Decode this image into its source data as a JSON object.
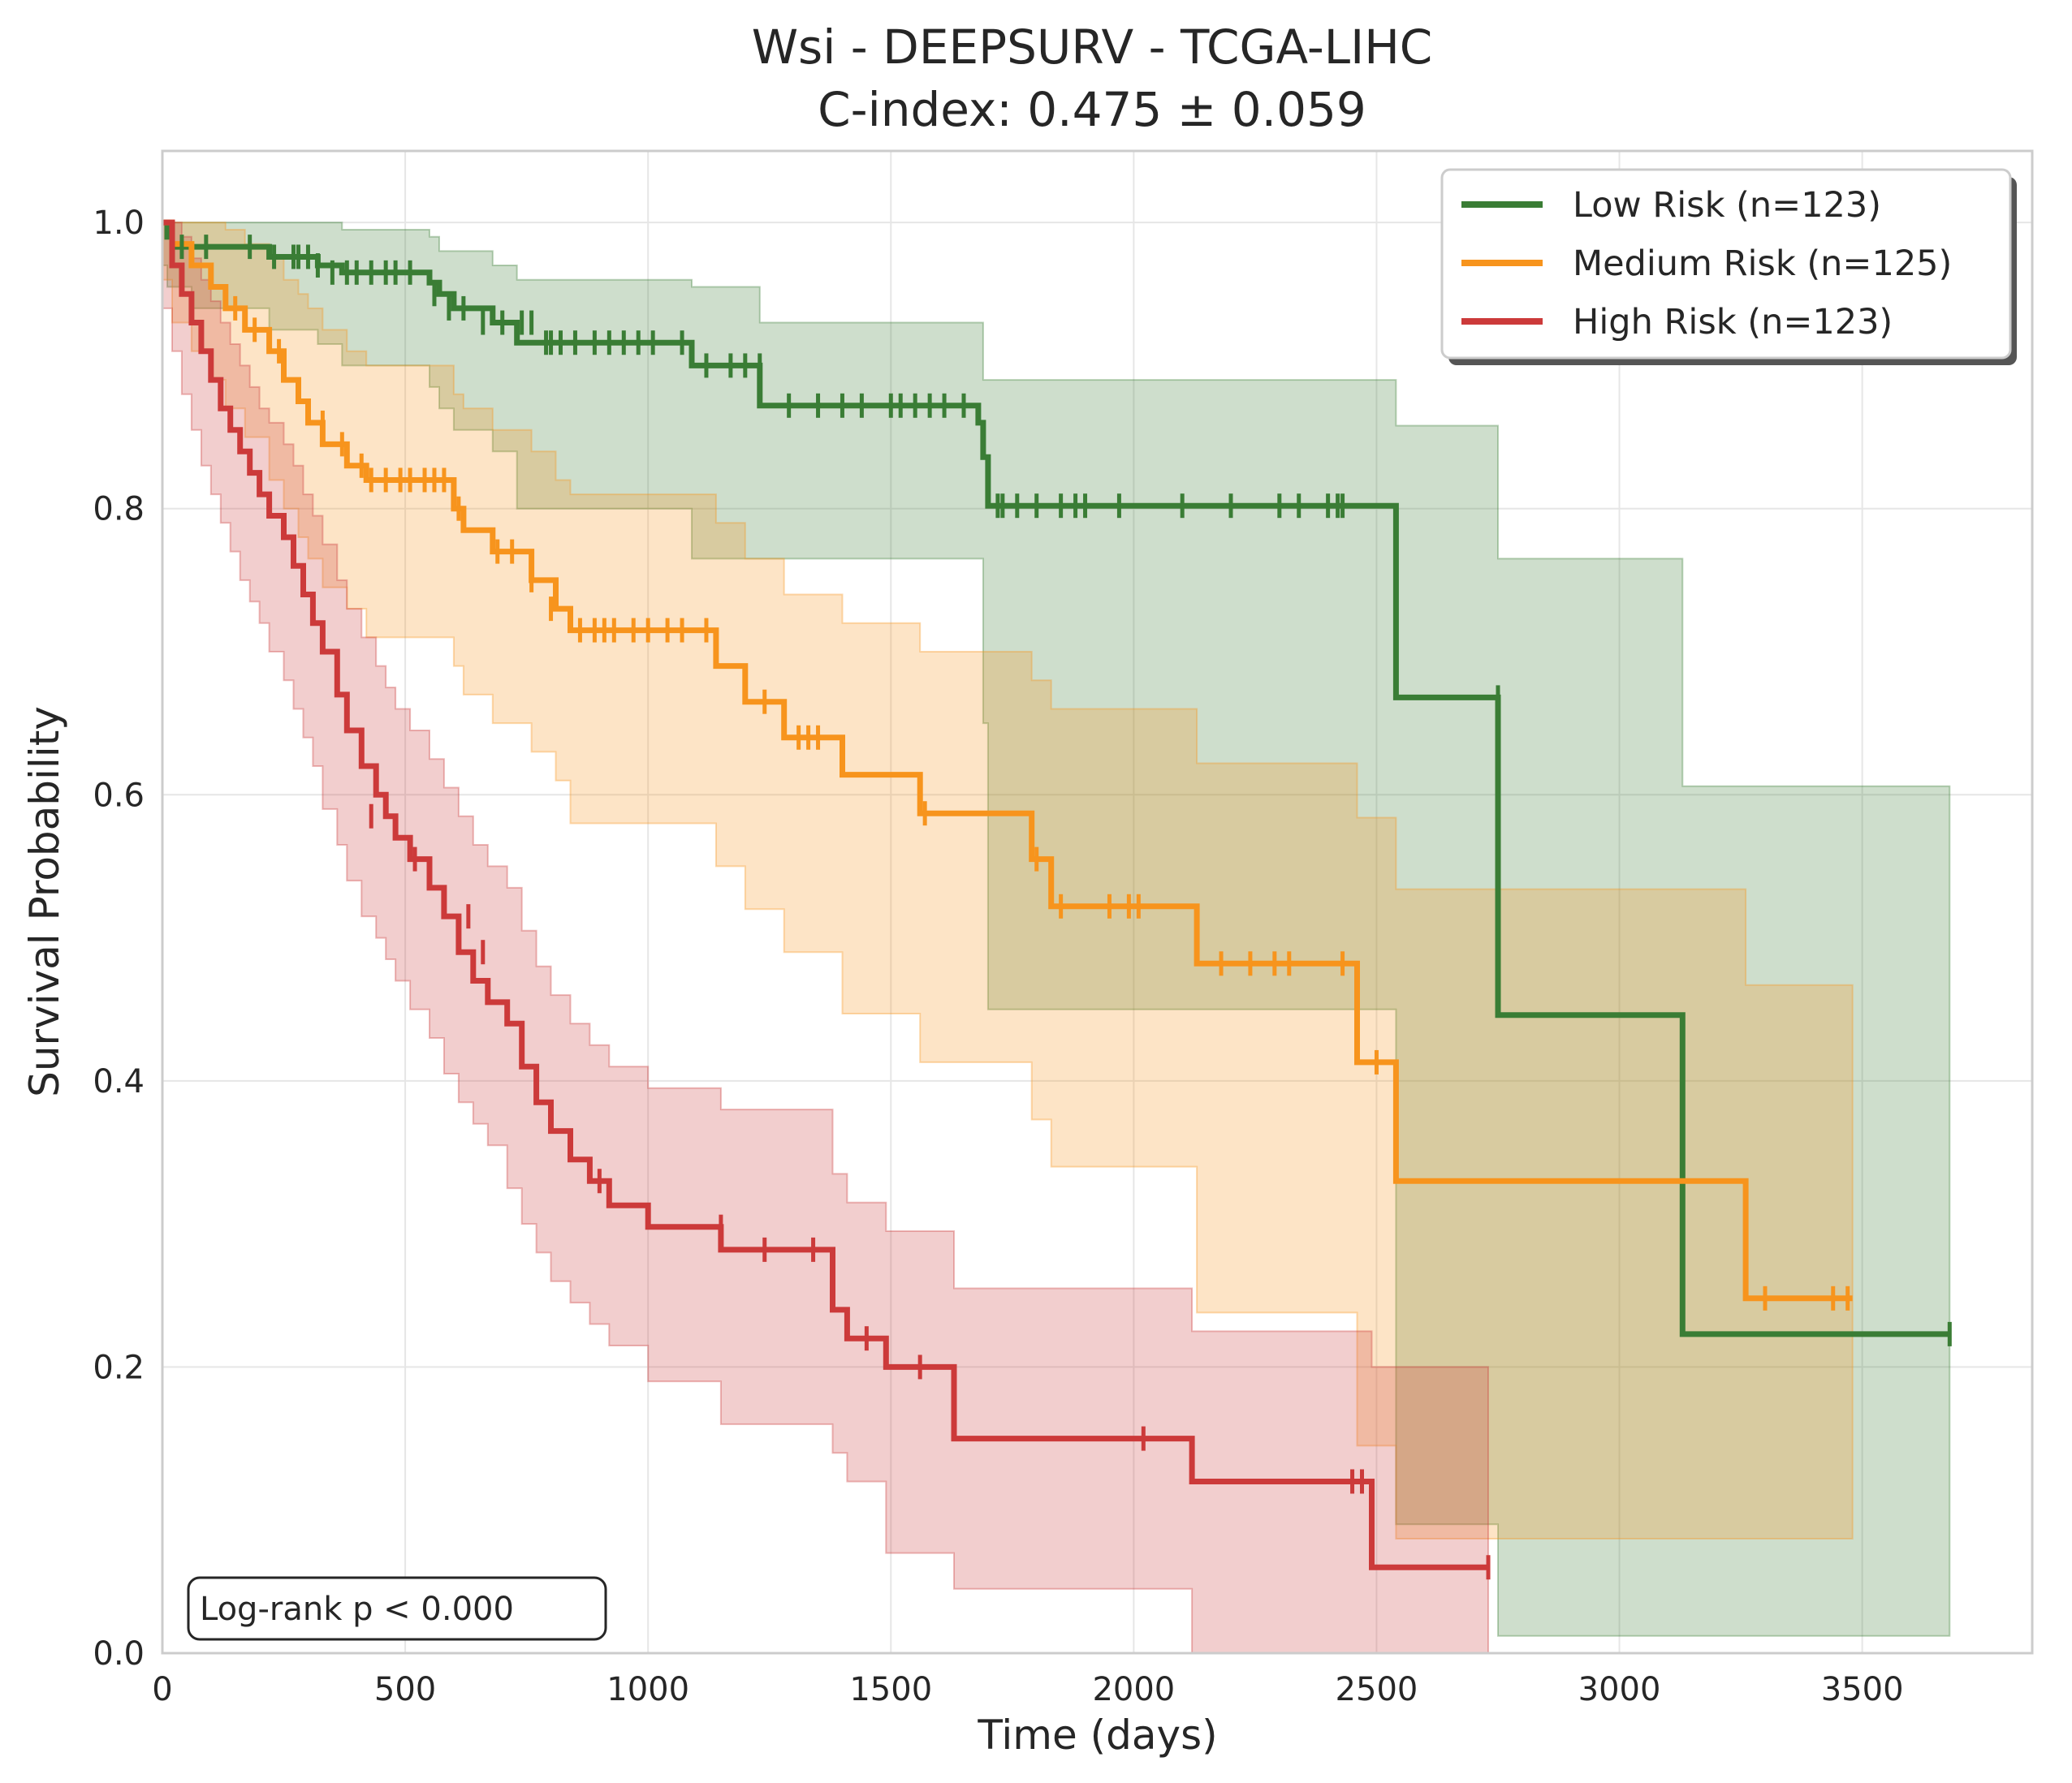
{
  "chart_data": {
    "type": "line",
    "subtype": "kaplan-meier",
    "title": "Wsi - DEEPSURV - TCGA-LIHC",
    "subtitle": "C-index: 0.475 ± 0.059",
    "xlabel": "Time (days)",
    "ylabel": "Survival Probability",
    "xlim": [
      0,
      3850
    ],
    "ylim": [
      0,
      1.05
    ],
    "xticks": [
      0,
      500,
      1000,
      1500,
      2000,
      2500,
      3000,
      3500
    ],
    "yticks": [
      0.0,
      0.2,
      0.4,
      0.6,
      0.8,
      1.0
    ],
    "xtick_labels": [
      "0",
      "500",
      "1000",
      "1500",
      "2000",
      "2500",
      "3000",
      "3500"
    ],
    "ytick_labels": [
      "0.0",
      "0.2",
      "0.4",
      "0.6",
      "0.8",
      "1.0"
    ],
    "grid": true,
    "legend_position": "top-right",
    "annotation": "Log-rank p < 0.000",
    "series": [
      {
        "name": "Low Risk (n=123)",
        "color": "#3a7d35",
        "x": [
          0,
          10,
          20,
          60,
          220,
          320,
          370,
          550,
          570,
          600,
          680,
          730,
          1090,
          1230,
          1680,
          1690,
          1700,
          2540,
          2750,
          3130,
          3680
        ],
        "y": [
          1.0,
          0.99,
          0.983,
          0.983,
          0.976,
          0.97,
          0.965,
          0.958,
          0.95,
          0.94,
          0.93,
          0.916,
          0.9,
          0.872,
          0.86,
          0.836,
          0.802,
          0.668,
          0.446,
          0.223,
          0.223
        ],
        "ci_upper": [
          1.0,
          1.0,
          1.0,
          1.0,
          1.0,
          1.0,
          0.995,
          0.99,
          0.98,
          0.98,
          0.97,
          0.96,
          0.955,
          0.93,
          0.93,
          0.89,
          0.89,
          0.858,
          0.765,
          0.606,
          0.606
        ],
        "ci_lower": [
          1.0,
          0.97,
          0.955,
          0.955,
          0.94,
          0.925,
          0.915,
          0.9,
          0.885,
          0.87,
          0.855,
          0.84,
          0.8,
          0.765,
          0.765,
          0.765,
          0.65,
          0.45,
          0.09,
          0.012,
          0.012
        ],
        "censor_x": [
          40,
          90,
          180,
          230,
          270,
          280,
          300,
          320,
          350,
          380,
          400,
          430,
          460,
          480,
          510,
          560,
          590,
          620,
          660,
          700,
          740,
          760,
          790,
          800,
          820,
          850,
          890,
          920,
          950,
          980,
          1010,
          1070,
          1120,
          1170,
          1200,
          1230,
          1290,
          1350,
          1400,
          1440,
          1500,
          1520,
          1550,
          1580,
          1610,
          1650,
          1720,
          1730,
          1760,
          1800,
          1850,
          1880,
          1900,
          1970,
          2100,
          2200,
          2300,
          2340,
          2400,
          2420,
          2430,
          2750,
          3680
        ],
        "censor_y": [
          0.983,
          0.983,
          0.983,
          0.976,
          0.976,
          0.976,
          0.976,
          0.97,
          0.965,
          0.965,
          0.965,
          0.965,
          0.965,
          0.965,
          0.965,
          0.95,
          0.94,
          0.94,
          0.93,
          0.93,
          0.93,
          0.93,
          0.916,
          0.916,
          0.916,
          0.916,
          0.916,
          0.916,
          0.916,
          0.916,
          0.916,
          0.916,
          0.9,
          0.9,
          0.9,
          0.9,
          0.872,
          0.872,
          0.872,
          0.872,
          0.872,
          0.872,
          0.872,
          0.872,
          0.872,
          0.872,
          0.802,
          0.802,
          0.802,
          0.802,
          0.802,
          0.802,
          0.802,
          0.802,
          0.802,
          0.802,
          0.802,
          0.802,
          0.802,
          0.802,
          0.802,
          0.668,
          0.223
        ]
      },
      {
        "name": "Medium Risk (n=125)",
        "color": "#f7941d",
        "x": [
          0,
          20,
          60,
          100,
          130,
          170,
          220,
          250,
          280,
          300,
          330,
          380,
          420,
          600,
          620,
          680,
          760,
          810,
          840,
          1140,
          1200,
          1280,
          1400,
          1560,
          1790,
          1830,
          2130,
          2460,
          2540,
          3260,
          3480
        ],
        "y": [
          1.0,
          0.985,
          0.97,
          0.955,
          0.94,
          0.925,
          0.91,
          0.89,
          0.875,
          0.86,
          0.845,
          0.83,
          0.82,
          0.8,
          0.785,
          0.77,
          0.75,
          0.73,
          0.715,
          0.69,
          0.665,
          0.64,
          0.614,
          0.587,
          0.555,
          0.522,
          0.482,
          0.413,
          0.33,
          0.248,
          0.248
        ],
        "ci_upper": [
          1.0,
          1.0,
          1.0,
          1.0,
          0.995,
          0.985,
          0.975,
          0.96,
          0.95,
          0.94,
          0.925,
          0.91,
          0.9,
          0.88,
          0.87,
          0.855,
          0.84,
          0.82,
          0.81,
          0.79,
          0.765,
          0.74,
          0.72,
          0.7,
          0.68,
          0.66,
          0.622,
          0.584,
          0.534,
          0.467,
          0.467
        ],
        "ci_lower": [
          1.0,
          0.96,
          0.93,
          0.91,
          0.89,
          0.87,
          0.85,
          0.82,
          0.8,
          0.78,
          0.765,
          0.745,
          0.73,
          0.71,
          0.69,
          0.67,
          0.65,
          0.63,
          0.61,
          0.58,
          0.55,
          0.52,
          0.49,
          0.447,
          0.413,
          0.373,
          0.34,
          0.238,
          0.145,
          0.08,
          0.08
        ],
        "censor_x": [
          150,
          190,
          240,
          330,
          370,
          410,
          430,
          460,
          490,
          510,
          540,
          560,
          580,
          610,
          690,
          720,
          760,
          800,
          860,
          890,
          910,
          930,
          970,
          1000,
          1040,
          1070,
          1120,
          1240,
          1310,
          1330,
          1350,
          1570,
          1800,
          1850,
          1950,
          1990,
          2010,
          2180,
          2240,
          2290,
          2320,
          2430,
          2500,
          3300,
          3440,
          3470
        ],
        "censor_y": [
          0.94,
          0.925,
          0.91,
          0.86,
          0.845,
          0.83,
          0.82,
          0.82,
          0.82,
          0.82,
          0.82,
          0.82,
          0.82,
          0.8,
          0.77,
          0.77,
          0.75,
          0.73,
          0.715,
          0.715,
          0.715,
          0.715,
          0.715,
          0.715,
          0.715,
          0.715,
          0.715,
          0.665,
          0.64,
          0.64,
          0.64,
          0.587,
          0.555,
          0.522,
          0.522,
          0.522,
          0.522,
          0.482,
          0.482,
          0.482,
          0.482,
          0.482,
          0.413,
          0.248,
          0.248,
          0.248
        ]
      },
      {
        "name": "High Risk (n=123)",
        "color": "#cc3a3a",
        "x": [
          0,
          20,
          40,
          60,
          80,
          100,
          120,
          140,
          160,
          180,
          200,
          220,
          250,
          270,
          290,
          310,
          330,
          360,
          380,
          410,
          440,
          460,
          480,
          510,
          550,
          580,
          610,
          640,
          670,
          710,
          740,
          770,
          800,
          840,
          880,
          920,
          1000,
          1150,
          1380,
          1410,
          1490,
          1630,
          2120,
          2490,
          2730
        ],
        "y": [
          1.0,
          0.97,
          0.95,
          0.93,
          0.91,
          0.89,
          0.87,
          0.855,
          0.84,
          0.825,
          0.81,
          0.795,
          0.78,
          0.76,
          0.74,
          0.72,
          0.7,
          0.67,
          0.645,
          0.62,
          0.6,
          0.585,
          0.57,
          0.555,
          0.535,
          0.515,
          0.49,
          0.47,
          0.455,
          0.44,
          0.41,
          0.385,
          0.365,
          0.345,
          0.33,
          0.313,
          0.298,
          0.282,
          0.24,
          0.22,
          0.2,
          0.15,
          0.12,
          0.06,
          0.06
        ],
        "ci_upper": [
          1.0,
          1.0,
          0.99,
          0.975,
          0.96,
          0.945,
          0.93,
          0.915,
          0.9,
          0.885,
          0.87,
          0.86,
          0.845,
          0.83,
          0.81,
          0.795,
          0.775,
          0.75,
          0.73,
          0.71,
          0.69,
          0.675,
          0.66,
          0.645,
          0.625,
          0.605,
          0.585,
          0.565,
          0.55,
          0.535,
          0.505,
          0.48,
          0.46,
          0.44,
          0.425,
          0.41,
          0.395,
          0.38,
          0.335,
          0.315,
          0.295,
          0.255,
          0.225,
          0.2,
          0.2
        ],
        "ci_lower": [
          1.0,
          0.94,
          0.91,
          0.88,
          0.855,
          0.83,
          0.81,
          0.79,
          0.77,
          0.75,
          0.735,
          0.72,
          0.7,
          0.68,
          0.66,
          0.64,
          0.62,
          0.59,
          0.565,
          0.54,
          0.515,
          0.5,
          0.485,
          0.47,
          0.45,
          0.43,
          0.405,
          0.385,
          0.37,
          0.355,
          0.325,
          0.3,
          0.28,
          0.26,
          0.245,
          0.23,
          0.215,
          0.19,
          0.16,
          0.14,
          0.12,
          0.07,
          0.045,
          0.0,
          0.0
        ],
        "censor_x": [
          430,
          520,
          630,
          660,
          900,
          1150,
          1240,
          1340,
          1450,
          1560,
          2020,
          2450,
          2470,
          2730
        ],
        "censor_y": [
          0.585,
          0.555,
          0.515,
          0.49,
          0.33,
          0.298,
          0.282,
          0.282,
          0.22,
          0.2,
          0.15,
          0.12,
          0.12,
          0.06
        ]
      }
    ]
  }
}
